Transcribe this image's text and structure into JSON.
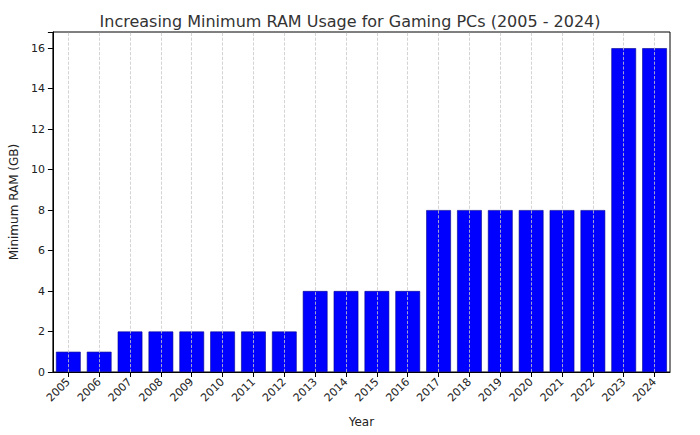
{
  "chart_data": {
    "type": "bar",
    "title": "Increasing Minimum RAM Usage for Gaming PCs (2005 - 2024)",
    "x_label": "Year",
    "y_label": "Minimum RAM (GB)",
    "categories": [
      "2005",
      "2006",
      "2007",
      "2008",
      "2009",
      "2010",
      "2011",
      "2012",
      "2013",
      "2014",
      "2015",
      "2016",
      "2017",
      "2018",
      "2019",
      "2020",
      "2021",
      "2022",
      "2023",
      "2024"
    ],
    "values": [
      1,
      1,
      2,
      2,
      2,
      2,
      2,
      2,
      4,
      4,
      4,
      4,
      8,
      8,
      8,
      8,
      8,
      8,
      16,
      16
    ],
    "color": "#0000ff",
    "ylim": [
      0,
      16.8
    ],
    "yticks": [
      0,
      2,
      4,
      6,
      8,
      10,
      12,
      14,
      16
    ],
    "grid": true
  }
}
